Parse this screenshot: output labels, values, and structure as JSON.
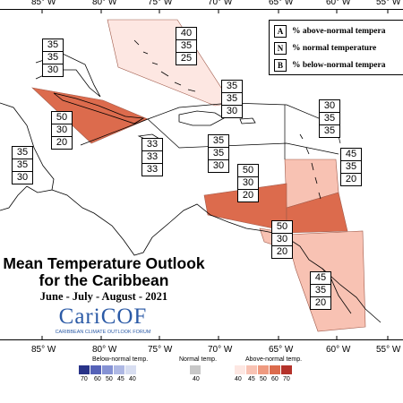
{
  "map": {
    "longitude_labels": [
      "85° W",
      "80° W",
      "75° W",
      "70° W",
      "65° W",
      "60° W",
      "55° W"
    ],
    "colors": {
      "above_40": "#fde7e2",
      "above_45": "#f8c2b3",
      "above_50": "#ef9a80",
      "above_60": "#dc6b4d",
      "above_70": "#b4322a",
      "normal_40": "#c8c8c8",
      "below_40": "#d8def1",
      "below_45": "#aeb8e4",
      "below_50": "#8592d4",
      "below_60": "#5562b8",
      "below_70": "#283388"
    }
  },
  "probability_boxes": [
    {
      "id": "bahamas",
      "A": "40",
      "N": "35",
      "B": "25"
    },
    {
      "id": "gulf-mexico",
      "A": "35",
      "N": "35",
      "B": "30"
    },
    {
      "id": "cuba",
      "A": "50",
      "N": "30",
      "B": "20"
    },
    {
      "id": "yucatan",
      "A": "35",
      "N": "35",
      "B": "30"
    },
    {
      "id": "jamaica",
      "A": "33",
      "N": "33",
      "B": "33"
    },
    {
      "id": "hispaniola",
      "A": "35",
      "N": "35",
      "B": "30"
    },
    {
      "id": "puerto-rico-north",
      "A": "35",
      "N": "35",
      "B": "30"
    },
    {
      "id": "leewards-north",
      "A": "30",
      "N": "35",
      "B": "35"
    },
    {
      "id": "caribbean-south",
      "A": "50",
      "N": "30",
      "B": "20"
    },
    {
      "id": "windwards",
      "A": "45",
      "N": "35",
      "B": "20"
    },
    {
      "id": "trinidad",
      "A": "50",
      "N": "30",
      "B": "20"
    },
    {
      "id": "guianas",
      "A": "45",
      "N": "35",
      "B": "20"
    }
  ],
  "legend_key": {
    "rows": [
      {
        "letter": "A",
        "text": "% above-normal tempera"
      },
      {
        "letter": "N",
        "text": "% normal temperature"
      },
      {
        "letter": "B",
        "text": "% below-normal tempera"
      }
    ]
  },
  "title": {
    "line1": "Mean Temperature Outlook",
    "line2": "for the Caribbean",
    "period": "June - July - August - 2021"
  },
  "logo": {
    "name": "CariCOF",
    "tagline": "CARIBBEAN CLIMATE OUTLOOK FORUM"
  },
  "colorbar": {
    "below_label": "Below-normal temp.",
    "normal_label": "Normal temp.",
    "above_label": "Above-normal temp.",
    "below_ticks": [
      "70",
      "60",
      "50",
      "45",
      "40"
    ],
    "normal_ticks": [
      "40"
    ],
    "above_ticks": [
      "40",
      "45",
      "50",
      "60",
      "70"
    ]
  }
}
